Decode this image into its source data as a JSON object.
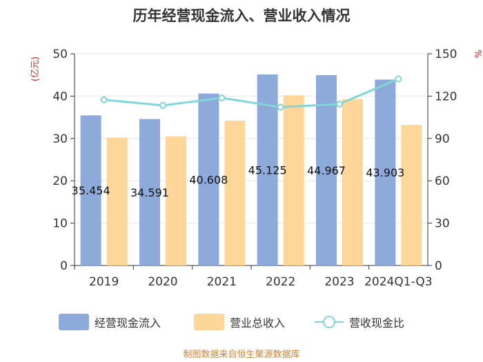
{
  "chart_data": {
    "type": "bar",
    "title": "历年经营现金流入、营业收入情况",
    "categories": [
      "2019",
      "2020",
      "2021",
      "2022",
      "2023",
      "2024Q1-Q3"
    ],
    "series": [
      {
        "name": "经营现金流入",
        "type": "bar",
        "axis": "left",
        "color": "#8eaadb",
        "values": [
          35.454,
          34.591,
          40.608,
          45.125,
          44.967,
          43.903
        ],
        "labels": [
          "35.454",
          "34.591",
          "40.608",
          "45.125",
          "44.967",
          "43.903"
        ]
      },
      {
        "name": "营业总收入",
        "type": "bar",
        "axis": "left",
        "color": "#ffd699",
        "values": [
          30.2,
          30.5,
          34.2,
          40.2,
          39.3,
          33.2
        ]
      },
      {
        "name": "营收现金比",
        "type": "line",
        "axis": "right",
        "color": "#7fd6d9",
        "values": [
          117.4,
          113.4,
          118.7,
          112.2,
          114.4,
          132.2
        ]
      }
    ],
    "y_left": {
      "label": "(亿元)",
      "min": 0,
      "max": 50,
      "ticks": [
        0,
        10,
        20,
        30,
        40,
        50
      ],
      "tick_labels": [
        "0",
        "10",
        "20",
        "30",
        "40",
        "50"
      ]
    },
    "y_right": {
      "label": "%",
      "min": 0,
      "max": 150,
      "ticks": [
        0,
        30,
        60,
        90,
        120,
        150
      ],
      "tick_labels": [
        "0",
        "30",
        "60",
        "90",
        "120",
        "150"
      ]
    },
    "legend": [
      "经营现金流入",
      "营业总收入",
      "营收现金比"
    ],
    "legend_position": "bottom",
    "source": "制图数据来自恒生聚源数据库"
  }
}
